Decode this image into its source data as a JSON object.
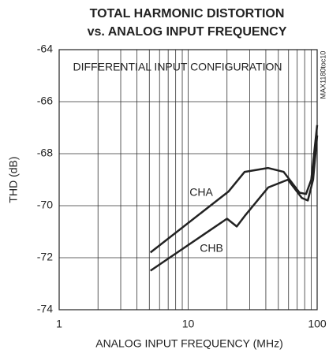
{
  "chart_data": {
    "type": "line",
    "title": [
      "TOTAL HARMONIC DISTORTION",
      "vs. ANALOG INPUT FREQUENCY"
    ],
    "xlabel": "ANALOG INPUT FREQUENCY (MHz)",
    "ylabel": "THD (dB)",
    "annotation": "DIFFERENTIAL INPUT CONFIGURATION",
    "side_label": "MAX1180toc10",
    "xscale": "log",
    "xlim": [
      1,
      100
    ],
    "xticks": [
      1,
      10,
      100
    ],
    "xminorticks": [
      2,
      3,
      4,
      5,
      6,
      7,
      8,
      9,
      20,
      30,
      40,
      50,
      60,
      70,
      80,
      90
    ],
    "ylim": [
      -74,
      -64
    ],
    "yticks": [
      -74,
      -72,
      -70,
      -68,
      -66,
      -64
    ],
    "grid": true,
    "series": [
      {
        "name": "CHA",
        "color": "#222222",
        "x": [
          5.1,
          20.6,
          27.4,
          41.7,
          55,
          73,
          82,
          90,
          100
        ],
        "values": [
          -71.8,
          -69.45,
          -68.7,
          -68.55,
          -68.7,
          -69.5,
          -69.55,
          -69,
          -66.9
        ]
      },
      {
        "name": "CHB",
        "color": "#222222",
        "x": [
          5.1,
          20,
          23.8,
          27.4,
          41.7,
          59.3,
          76,
          84.6,
          93,
          100
        ],
        "values": [
          -72.5,
          -70.5,
          -70.8,
          -70.4,
          -69.3,
          -69,
          -69.7,
          -69.8,
          -69,
          -67.3
        ]
      }
    ]
  }
}
